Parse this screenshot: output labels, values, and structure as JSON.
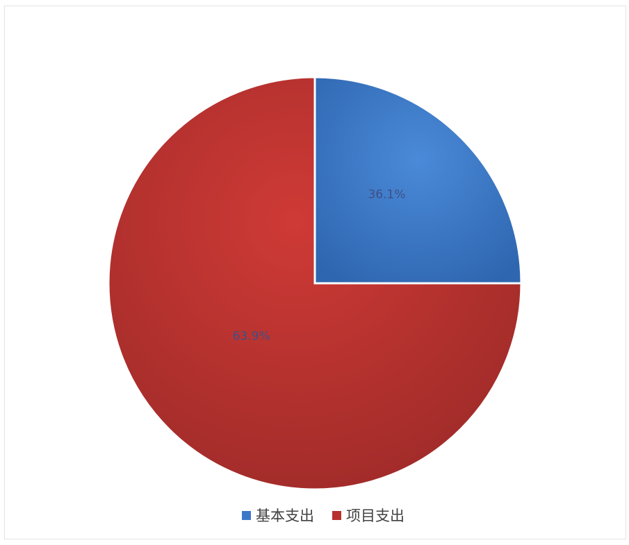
{
  "chart_data": {
    "type": "pie",
    "categories": [
      "基本支出",
      "项目支出"
    ],
    "values": [
      36.1,
      63.9
    ],
    "data_labels": [
      "36.1%",
      "63.9%"
    ],
    "colors": [
      "#3c78c8",
      "#b8312f"
    ],
    "start_angle_deg": 0,
    "direction": "clockwise",
    "legend_position": "bottom"
  }
}
